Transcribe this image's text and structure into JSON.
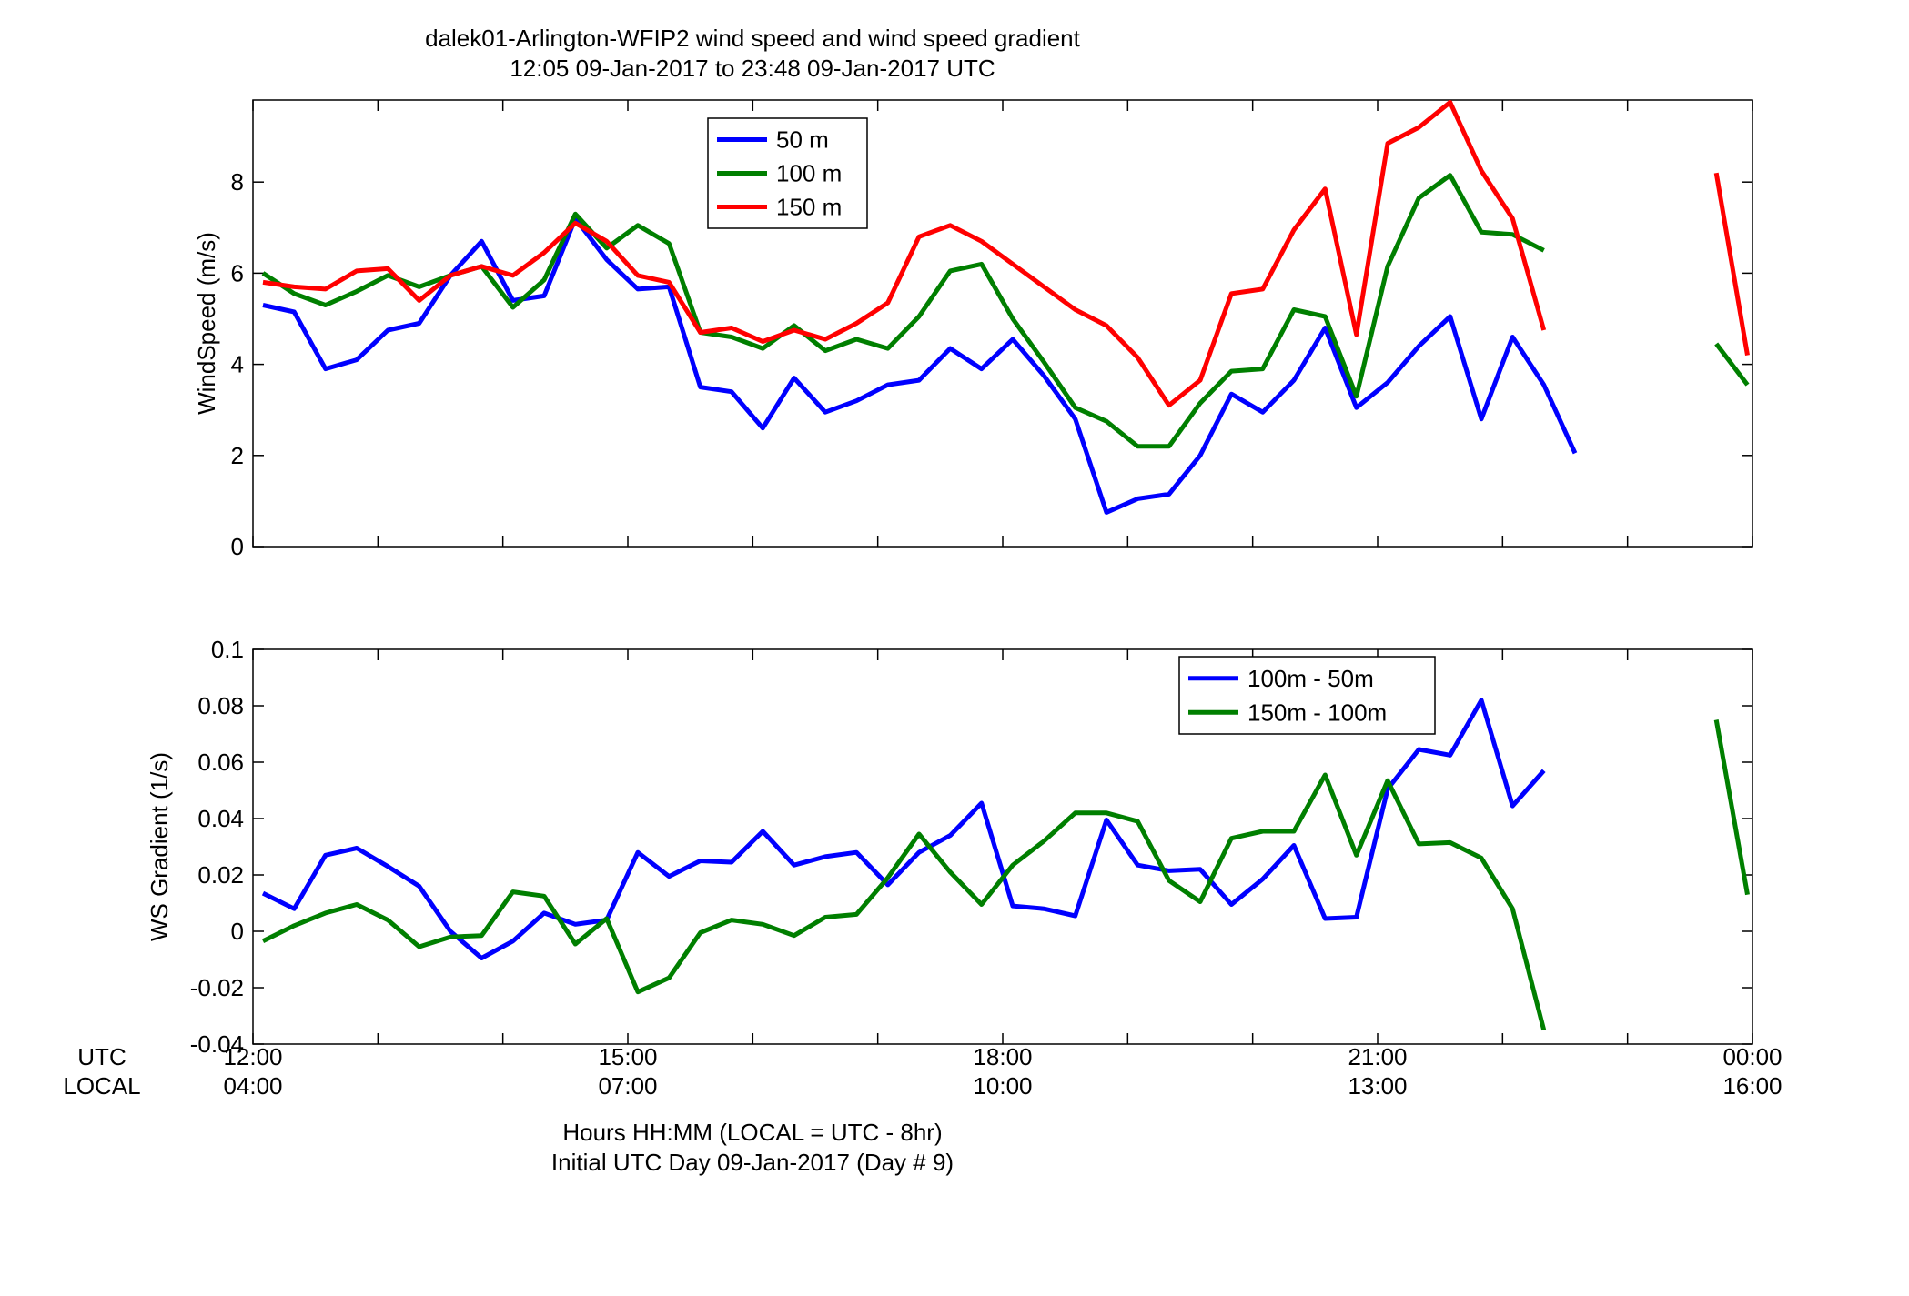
{
  "header": {
    "title_line1": "dalek01-Arlington-WFIP2  wind speed and wind speed gradient",
    "title_line2": "12:05 09-Jan-2017 to 23:48 09-Jan-2017  UTC"
  },
  "footer": {
    "xlabel_line1": "Hours HH:MM  (LOCAL = UTC - 8hr)",
    "xlabel_line2": "Initial UTC Day 09-Jan-2017 (Day # 9)",
    "utc_label": "UTC",
    "local_label": "LOCAL"
  },
  "colors": {
    "blue": "#0000ff",
    "green": "#007f00",
    "red": "#ff0000"
  },
  "x_ticks": [
    {
      "hour": 12,
      "utc": "12:00",
      "local": "04:00"
    },
    {
      "hour": 15,
      "utc": "15:00",
      "local": "07:00"
    },
    {
      "hour": 18,
      "utc": "18:00",
      "local": "10:00"
    },
    {
      "hour": 21,
      "utc": "21:00",
      "local": "13:00"
    },
    {
      "hour": 24,
      "utc": "00:00",
      "local": "16:00"
    }
  ],
  "chart_data": [
    {
      "type": "line",
      "ylabel": "WindSpeed (m/s)",
      "xlim": [
        12,
        24
      ],
      "ylim": [
        0,
        9.8
      ],
      "yticks": [
        0,
        2,
        4,
        6,
        8
      ],
      "legend_position": "top-center",
      "series": [
        {
          "name": "50 m",
          "color": "#0000ff",
          "points": [
            [
              12.08,
              5.3
            ],
            [
              12.33,
              5.15
            ],
            [
              12.58,
              3.9
            ],
            [
              12.83,
              4.1
            ],
            [
              13.08,
              4.75
            ],
            [
              13.33,
              4.9
            ],
            [
              13.58,
              5.95
            ],
            [
              13.83,
              6.7
            ],
            [
              14.08,
              5.4
            ],
            [
              14.33,
              5.5
            ],
            [
              14.58,
              7.2
            ],
            [
              14.83,
              6.3
            ],
            [
              15.08,
              5.65
            ],
            [
              15.33,
              5.7
            ],
            [
              15.58,
              3.5
            ],
            [
              15.83,
              3.4
            ],
            [
              16.08,
              2.6
            ],
            [
              16.33,
              3.7
            ],
            [
              16.58,
              2.95
            ],
            [
              16.83,
              3.2
            ],
            [
              17.08,
              3.55
            ],
            [
              17.33,
              3.65
            ],
            [
              17.58,
              4.35
            ],
            [
              17.83,
              3.9
            ],
            [
              18.08,
              4.55
            ],
            [
              18.33,
              3.75
            ],
            [
              18.58,
              2.8
            ],
            [
              18.83,
              0.75
            ],
            [
              19.08,
              1.05
            ],
            [
              19.33,
              1.15
            ],
            [
              19.58,
              2.0
            ],
            [
              19.83,
              3.35
            ],
            [
              20.08,
              2.95
            ],
            [
              20.33,
              3.65
            ],
            [
              20.58,
              4.8
            ],
            [
              20.83,
              3.05
            ],
            [
              21.08,
              3.6
            ],
            [
              21.33,
              4.4
            ],
            [
              21.58,
              5.05
            ],
            [
              21.83,
              2.8
            ],
            [
              22.08,
              4.6
            ],
            [
              22.33,
              3.55
            ],
            [
              22.58,
              2.05
            ]
          ]
        },
        {
          "name": "100 m",
          "color": "#007f00",
          "points": [
            [
              12.08,
              6.0
            ],
            [
              12.33,
              5.55
            ],
            [
              12.58,
              5.3
            ],
            [
              12.83,
              5.6
            ],
            [
              13.08,
              5.95
            ],
            [
              13.33,
              5.7
            ],
            [
              13.58,
              5.95
            ],
            [
              13.83,
              6.15
            ],
            [
              14.08,
              5.25
            ],
            [
              14.33,
              5.85
            ],
            [
              14.58,
              7.3
            ],
            [
              14.83,
              6.55
            ],
            [
              15.08,
              7.05
            ],
            [
              15.33,
              6.65
            ],
            [
              15.58,
              4.7
            ],
            [
              15.83,
              4.6
            ],
            [
              16.08,
              4.35
            ],
            [
              16.33,
              4.85
            ],
            [
              16.58,
              4.3
            ],
            [
              16.83,
              4.55
            ],
            [
              17.08,
              4.35
            ],
            [
              17.33,
              5.05
            ],
            [
              17.58,
              6.05
            ],
            [
              17.83,
              6.2
            ],
            [
              18.08,
              5.0
            ],
            [
              18.33,
              4.05
            ],
            [
              18.58,
              3.05
            ],
            [
              18.83,
              2.75
            ],
            [
              19.08,
              2.2
            ],
            [
              19.33,
              2.2
            ],
            [
              19.58,
              3.15
            ],
            [
              19.83,
              3.85
            ],
            [
              20.08,
              3.9
            ],
            [
              20.33,
              5.2
            ],
            [
              20.58,
              5.05
            ],
            [
              20.83,
              3.3
            ],
            [
              21.08,
              6.15
            ],
            [
              21.33,
              7.65
            ],
            [
              21.58,
              8.15
            ],
            [
              21.83,
              6.9
            ],
            [
              22.08,
              6.85
            ],
            [
              22.33,
              6.5
            ],
            null,
            [
              23.71,
              4.45
            ],
            [
              23.96,
              3.55
            ]
          ]
        },
        {
          "name": "150 m",
          "color": "#ff0000",
          "points": [
            [
              12.08,
              5.8
            ],
            [
              12.33,
              5.7
            ],
            [
              12.58,
              5.65
            ],
            [
              12.83,
              6.05
            ],
            [
              13.08,
              6.1
            ],
            [
              13.33,
              5.4
            ],
            [
              13.58,
              5.95
            ],
            [
              13.83,
              6.15
            ],
            [
              14.08,
              5.95
            ],
            [
              14.33,
              6.45
            ],
            [
              14.58,
              7.1
            ],
            [
              14.83,
              6.7
            ],
            [
              15.08,
              5.95
            ],
            [
              15.33,
              5.8
            ],
            [
              15.58,
              4.7
            ],
            [
              15.83,
              4.8
            ],
            [
              16.08,
              4.5
            ],
            [
              16.33,
              4.75
            ],
            [
              16.58,
              4.55
            ],
            [
              16.83,
              4.9
            ],
            [
              17.08,
              5.35
            ],
            [
              17.33,
              6.8
            ],
            [
              17.58,
              7.05
            ],
            [
              17.83,
              6.7
            ],
            [
              18.08,
              6.2
            ],
            [
              18.33,
              5.7
            ],
            [
              18.58,
              5.2
            ],
            [
              18.83,
              4.85
            ],
            [
              19.08,
              4.15
            ],
            [
              19.33,
              3.1
            ],
            [
              19.58,
              3.65
            ],
            [
              19.83,
              5.55
            ],
            [
              20.08,
              5.65
            ],
            [
              20.33,
              6.95
            ],
            [
              20.58,
              7.85
            ],
            [
              20.83,
              4.65
            ],
            [
              21.08,
              8.85
            ],
            [
              21.33,
              9.2
            ],
            [
              21.58,
              9.75
            ],
            [
              21.83,
              8.25
            ],
            [
              22.08,
              7.2
            ],
            [
              22.33,
              4.75
            ],
            null,
            [
              23.71,
              8.2
            ],
            [
              23.96,
              4.2
            ]
          ]
        }
      ]
    },
    {
      "type": "line",
      "ylabel": "WS Gradient (1/s)",
      "xlim": [
        12,
        24
      ],
      "ylim": [
        -0.04,
        0.1
      ],
      "yticks": [
        -0.04,
        -0.02,
        0,
        0.02,
        0.04,
        0.06,
        0.08,
        0.1
      ],
      "ytick_labels": [
        "-0.04",
        "-0.02",
        "0",
        "0.02",
        "0.04",
        "0.06",
        "0.08",
        "0.1"
      ],
      "legend_position": "top-right",
      "series": [
        {
          "name": "100m - 50m",
          "color": "#0000ff",
          "points": [
            [
              12.08,
              0.0135
            ],
            [
              12.33,
              0.008
            ],
            [
              12.58,
              0.027
            ],
            [
              12.83,
              0.0295
            ],
            [
              13.08,
              0.023
            ],
            [
              13.33,
              0.016
            ],
            [
              13.58,
              0.0
            ],
            [
              13.83,
              -0.0095
            ],
            [
              14.08,
              -0.0035
            ],
            [
              14.33,
              0.0065
            ],
            [
              14.58,
              0.0025
            ],
            [
              14.83,
              0.004
            ],
            [
              15.08,
              0.028
            ],
            [
              15.33,
              0.0195
            ],
            [
              15.58,
              0.025
            ],
            [
              15.83,
              0.0245
            ],
            [
              16.08,
              0.0355
            ],
            [
              16.33,
              0.0235
            ],
            [
              16.58,
              0.0265
            ],
            [
              16.83,
              0.028
            ],
            [
              17.08,
              0.0165
            ],
            [
              17.33,
              0.028
            ],
            [
              17.58,
              0.034
            ],
            [
              17.83,
              0.0455
            ],
            [
              18.08,
              0.009
            ],
            [
              18.33,
              0.008
            ],
            [
              18.58,
              0.0055
            ],
            [
              18.83,
              0.0395
            ],
            [
              19.08,
              0.0235
            ],
            [
              19.33,
              0.0215
            ],
            [
              19.58,
              0.022
            ],
            [
              19.83,
              0.0095
            ],
            [
              20.08,
              0.0185
            ],
            [
              20.33,
              0.0305
            ],
            [
              20.58,
              0.0045
            ],
            [
              20.83,
              0.005
            ],
            [
              21.08,
              0.0505
            ],
            [
              21.33,
              0.0645
            ],
            [
              21.58,
              0.0625
            ],
            [
              21.83,
              0.082
            ],
            [
              22.08,
              0.0445
            ],
            [
              22.33,
              0.057
            ]
          ]
        },
        {
          "name": "150m - 100m",
          "color": "#007f00",
          "points": [
            [
              12.08,
              -0.0035
            ],
            [
              12.33,
              0.002
            ],
            [
              12.58,
              0.0065
            ],
            [
              12.83,
              0.0095
            ],
            [
              13.08,
              0.004
            ],
            [
              13.33,
              -0.0055
            ],
            [
              13.58,
              -0.002
            ],
            [
              13.83,
              -0.0015
            ],
            [
              14.08,
              0.014
            ],
            [
              14.33,
              0.0125
            ],
            [
              14.58,
              -0.0045
            ],
            [
              14.83,
              0.0045
            ],
            [
              15.08,
              -0.0215
            ],
            [
              15.33,
              -0.0165
            ],
            [
              15.58,
              -0.0005
            ],
            [
              15.83,
              0.004
            ],
            [
              16.08,
              0.0025
            ],
            [
              16.33,
              -0.0015
            ],
            [
              16.58,
              0.005
            ],
            [
              16.83,
              0.006
            ],
            [
              17.08,
              0.019
            ],
            [
              17.33,
              0.0345
            ],
            [
              17.58,
              0.021
            ],
            [
              17.83,
              0.0095
            ],
            [
              18.08,
              0.0235
            ],
            [
              18.33,
              0.032
            ],
            [
              18.58,
              0.042
            ],
            [
              18.83,
              0.042
            ],
            [
              19.08,
              0.039
            ],
            [
              19.33,
              0.018
            ],
            [
              19.58,
              0.0105
            ],
            [
              19.83,
              0.033
            ],
            [
              20.08,
              0.0355
            ],
            [
              20.33,
              0.0355
            ],
            [
              20.58,
              0.0555
            ],
            [
              20.83,
              0.027
            ],
            [
              21.08,
              0.0535
            ],
            [
              21.33,
              0.031
            ],
            [
              21.58,
              0.0315
            ],
            [
              21.83,
              0.026
            ],
            [
              22.08,
              0.008
            ],
            [
              22.33,
              -0.035
            ],
            null,
            [
              23.71,
              0.075
            ],
            [
              23.96,
              0.013
            ]
          ]
        }
      ]
    }
  ]
}
